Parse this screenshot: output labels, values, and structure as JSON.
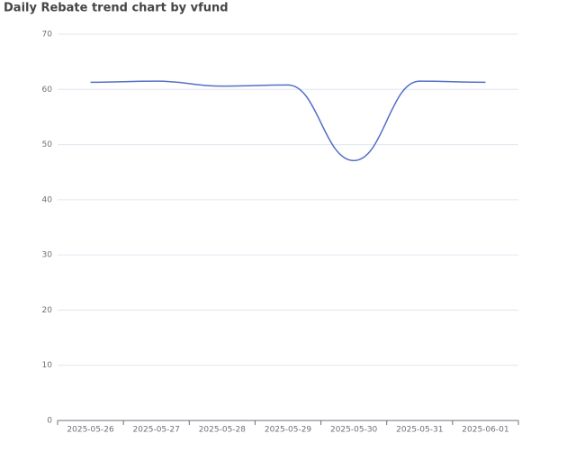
{
  "chart_data": {
    "type": "line",
    "title": "Daily Rebate trend chart by vfund",
    "categories": [
      "2025-05-26",
      "2025-05-27",
      "2025-05-28",
      "2025-05-29",
      "2025-05-30",
      "2025-05-31",
      "2025-06-01"
    ],
    "series": [
      {
        "color": "#5470c6",
        "values": [
          61.3,
          61.5,
          60.6,
          60.8,
          47.1,
          61.5,
          61.3
        ]
      }
    ],
    "ylim": [
      0,
      70
    ],
    "yticks": [
      0,
      10,
      20,
      30,
      40,
      50,
      60,
      70
    ],
    "grid": true,
    "smooth": true
  }
}
